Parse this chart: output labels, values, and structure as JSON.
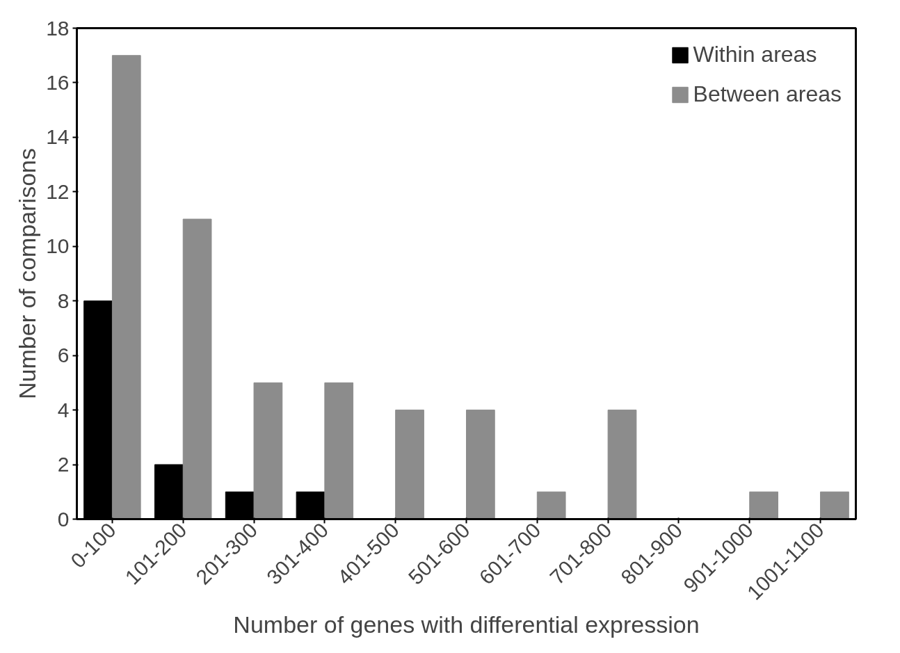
{
  "chart_data": {
    "type": "bar",
    "xlabel": "Number of genes with differential expression",
    "ylabel": "Number of comparisons",
    "categories": [
      "0-100",
      "101-200",
      "201-300",
      "301-400",
      "401-500",
      "501-600",
      "601-700",
      "701-800",
      "801-900",
      "901-1000",
      "1001-1100"
    ],
    "series": [
      {
        "name": "Within areas",
        "color": "#000000",
        "values": [
          8,
          2,
          1,
          1,
          0,
          0,
          0,
          0,
          0,
          0,
          0
        ]
      },
      {
        "name": "Between areas",
        "color": "#8c8c8c",
        "values": [
          17,
          11,
          5,
          5,
          4,
          4,
          1,
          4,
          0,
          1,
          1
        ]
      }
    ],
    "ylim": [
      0,
      18
    ],
    "yticks": [
      0,
      2,
      4,
      6,
      8,
      10,
      12,
      14,
      16,
      18
    ],
    "grid": false,
    "legend": "top right"
  }
}
